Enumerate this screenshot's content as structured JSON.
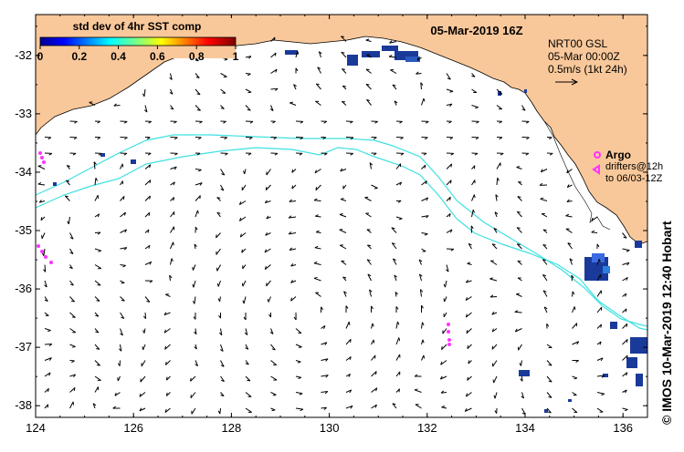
{
  "title": "05-Mar-2019 16Z",
  "colorbar": {
    "title": "std dev of 4hr SST comp",
    "ticks": [
      "0",
      "0.2",
      "0.4",
      "0.6",
      "0.8",
      "1"
    ],
    "tick_values": [
      0,
      0.2,
      0.4,
      0.6,
      0.8,
      1
    ],
    "range": [
      0,
      1
    ]
  },
  "legend": {
    "line1": "NRT00 GSL",
    "line2": "05-Mar 00:00Z",
    "line3": "0.5m/s (1kt 24h)",
    "argo_label": "Argo",
    "drifters_line1": "drifters@12h",
    "drifters_line2": "to 06/03-12Z"
  },
  "axes": {
    "x_ticks": [
      "124",
      "126",
      "128",
      "130",
      "132",
      "134",
      "136"
    ],
    "x_values": [
      124,
      126,
      128,
      130,
      132,
      134,
      136
    ],
    "y_ticks": [
      "-32",
      "-33",
      "-34",
      "-35",
      "-36",
      "-37",
      "-38"
    ],
    "y_values": [
      -32,
      -33,
      -34,
      -35,
      -36,
      -37,
      -38
    ],
    "lon_range": [
      124,
      136.5
    ],
    "lat_range": [
      -31.3,
      -38.2
    ]
  },
  "credit": "© IMOS 10-Mar-2019 12:40 Hobart",
  "colors": {
    "land": "#f9c89a",
    "ocean": "#ffffff",
    "contour": "#3fe0e0",
    "argo": "#ff33ff",
    "sst_patch": "#1a3a9a"
  },
  "icons": {
    "argo_marker": "argo-float-icon",
    "drifter_marker": "drifter-triangle-icon",
    "scale_arrow": "scale-arrow-icon"
  }
}
